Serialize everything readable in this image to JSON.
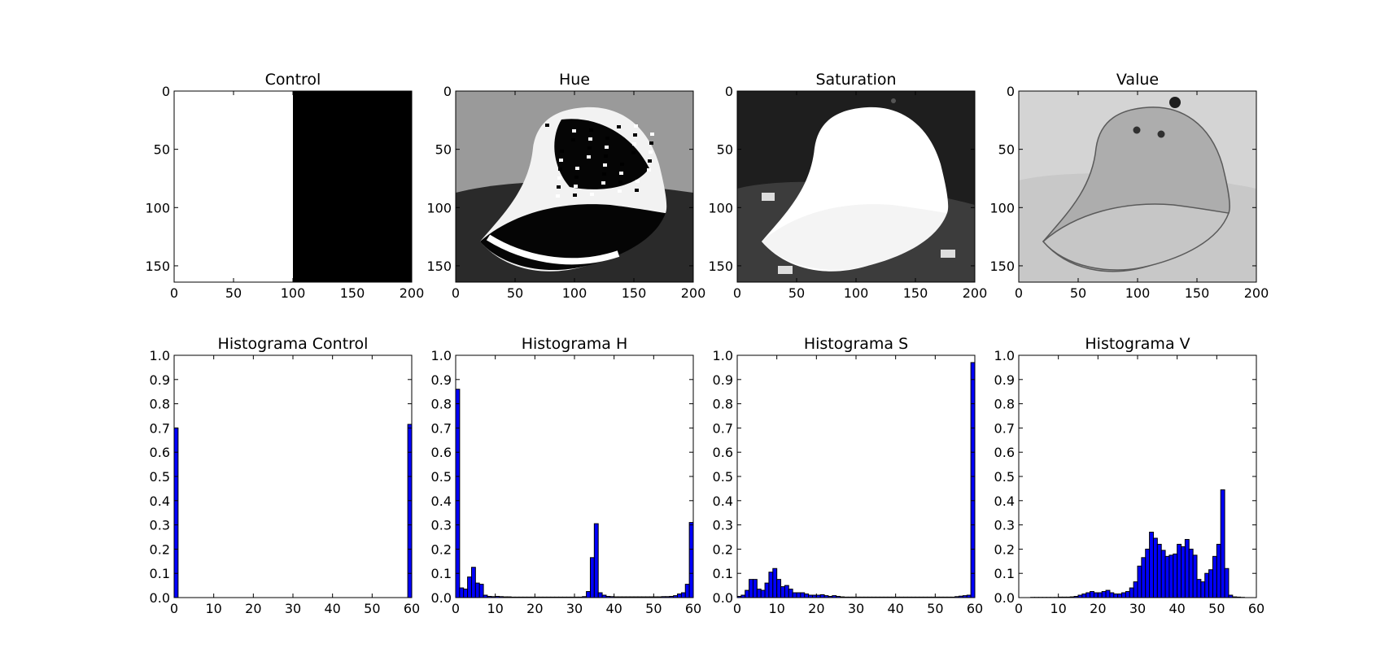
{
  "colors": {
    "bar": "#0000ff",
    "edge": "#000000"
  },
  "chart_data": [
    {
      "type": "image",
      "title": "Control",
      "depicts": "control-split",
      "xticks": [
        "0",
        "50",
        "100",
        "150",
        "200"
      ],
      "yticks": [
        "0",
        "50",
        "100",
        "150"
      ],
      "xlim": [
        0,
        200
      ],
      "ylim": [
        0,
        164
      ]
    },
    {
      "type": "image",
      "title": "Hue",
      "depicts": "cap-hue",
      "xticks": [
        "0",
        "50",
        "100",
        "150",
        "200"
      ],
      "yticks": [
        "0",
        "50",
        "100",
        "150"
      ],
      "xlim": [
        0,
        200
      ],
      "ylim": [
        0,
        164
      ]
    },
    {
      "type": "image",
      "title": "Saturation",
      "depicts": "cap-saturation",
      "xticks": [
        "0",
        "50",
        "100",
        "150",
        "200"
      ],
      "yticks": [
        "0",
        "50",
        "100",
        "150"
      ],
      "xlim": [
        0,
        200
      ],
      "ylim": [
        0,
        164
      ]
    },
    {
      "type": "image",
      "title": "Value",
      "depicts": "cap-value",
      "xticks": [
        "0",
        "50",
        "100",
        "150",
        "200"
      ],
      "yticks": [
        "0",
        "50",
        "100",
        "150"
      ],
      "xlim": [
        0,
        200
      ],
      "ylim": [
        0,
        164
      ]
    },
    {
      "type": "bar",
      "title": "Histograma Control",
      "xticks": [
        "0",
        "10",
        "20",
        "30",
        "40",
        "50",
        "60"
      ],
      "yticks": [
        "0.0",
        "0.1",
        "0.2",
        "0.3",
        "0.4",
        "0.5",
        "0.6",
        "0.7",
        "0.8",
        "0.9",
        "1.0"
      ],
      "xlim": [
        0,
        60
      ],
      "ylim": [
        0,
        1.0
      ],
      "bins": 60,
      "values": [
        0.7,
        0,
        0,
        0,
        0,
        0,
        0,
        0,
        0,
        0,
        0,
        0,
        0,
        0,
        0,
        0,
        0,
        0,
        0,
        0,
        0,
        0,
        0,
        0,
        0,
        0,
        0,
        0,
        0,
        0,
        0,
        0,
        0,
        0,
        0,
        0,
        0,
        0,
        0,
        0,
        0,
        0,
        0,
        0,
        0,
        0,
        0,
        0,
        0,
        0,
        0,
        0,
        0,
        0,
        0,
        0,
        0,
        0,
        0,
        0.715
      ]
    },
    {
      "type": "bar",
      "title": "Histograma H",
      "xticks": [
        "0",
        "10",
        "20",
        "30",
        "40",
        "50",
        "60"
      ],
      "yticks": [
        "0.0",
        "0.1",
        "0.2",
        "0.3",
        "0.4",
        "0.5",
        "0.6",
        "0.7",
        "0.8",
        "0.9",
        "1.0"
      ],
      "xlim": [
        0,
        60
      ],
      "ylim": [
        0,
        1.0
      ],
      "bins": 60,
      "values": [
        0.86,
        0.04,
        0.035,
        0.085,
        0.125,
        0.06,
        0.055,
        0.01,
        0.005,
        0.004,
        0.005,
        0.004,
        0.003,
        0.003,
        0.002,
        0.002,
        0.002,
        0.002,
        0.002,
        0.002,
        0.002,
        0.002,
        0.002,
        0.002,
        0.002,
        0.002,
        0.002,
        0.002,
        0.002,
        0.002,
        0.002,
        0.002,
        0.004,
        0.025,
        0.165,
        0.305,
        0.02,
        0.01,
        0.005,
        0.004,
        0.003,
        0.003,
        0.003,
        0.003,
        0.003,
        0.003,
        0.003,
        0.003,
        0.003,
        0.003,
        0.003,
        0.003,
        0.004,
        0.004,
        0.005,
        0.008,
        0.015,
        0.02,
        0.055,
        0.31
      ]
    },
    {
      "type": "bar",
      "title": "Histograma S",
      "xticks": [
        "0",
        "10",
        "20",
        "30",
        "40",
        "50",
        "60"
      ],
      "yticks": [
        "0.0",
        "0.1",
        "0.2",
        "0.3",
        "0.4",
        "0.5",
        "0.6",
        "0.7",
        "0.8",
        "0.9",
        "1.0"
      ],
      "xlim": [
        0,
        60
      ],
      "ylim": [
        0,
        1.0
      ],
      "bins": 60,
      "values": [
        0.005,
        0.01,
        0.03,
        0.075,
        0.075,
        0.035,
        0.03,
        0.06,
        0.105,
        0.12,
        0.075,
        0.045,
        0.05,
        0.035,
        0.02,
        0.02,
        0.02,
        0.015,
        0.01,
        0.01,
        0.01,
        0.012,
        0.008,
        0.005,
        0.008,
        0.005,
        0.003,
        0.002,
        0.002,
        0.002,
        0.002,
        0.002,
        0.002,
        0.002,
        0.002,
        0.002,
        0.002,
        0.002,
        0.002,
        0.002,
        0.002,
        0.002,
        0.002,
        0.002,
        0.002,
        0.002,
        0.002,
        0.002,
        0.002,
        0.002,
        0.002,
        0.002,
        0.002,
        0.002,
        0.002,
        0.004,
        0.006,
        0.008,
        0.01,
        0.97
      ]
    },
    {
      "type": "bar",
      "title": "Histograma V",
      "xticks": [
        "0",
        "10",
        "20",
        "30",
        "40",
        "50",
        "60"
      ],
      "yticks": [
        "0.0",
        "0.1",
        "0.2",
        "0.3",
        "0.4",
        "0.5",
        "0.6",
        "0.7",
        "0.8",
        "0.9",
        "1.0"
      ],
      "xlim": [
        0,
        60
      ],
      "ylim": [
        0,
        1.0
      ],
      "bins": 60,
      "values": [
        0,
        0,
        0,
        0.001,
        0.001,
        0.001,
        0.001,
        0.001,
        0.001,
        0.001,
        0.002,
        0.002,
        0.002,
        0.003,
        0.005,
        0.01,
        0.015,
        0.02,
        0.025,
        0.02,
        0.02,
        0.025,
        0.03,
        0.02,
        0.015,
        0.015,
        0.02,
        0.025,
        0.04,
        0.065,
        0.13,
        0.165,
        0.2,
        0.27,
        0.245,
        0.22,
        0.195,
        0.17,
        0.175,
        0.18,
        0.22,
        0.21,
        0.24,
        0.2,
        0.175,
        0.075,
        0.065,
        0.1,
        0.115,
        0.17,
        0.22,
        0.445,
        0.12,
        0.01,
        0.003,
        0.002,
        0.001,
        0,
        0,
        0
      ]
    }
  ]
}
